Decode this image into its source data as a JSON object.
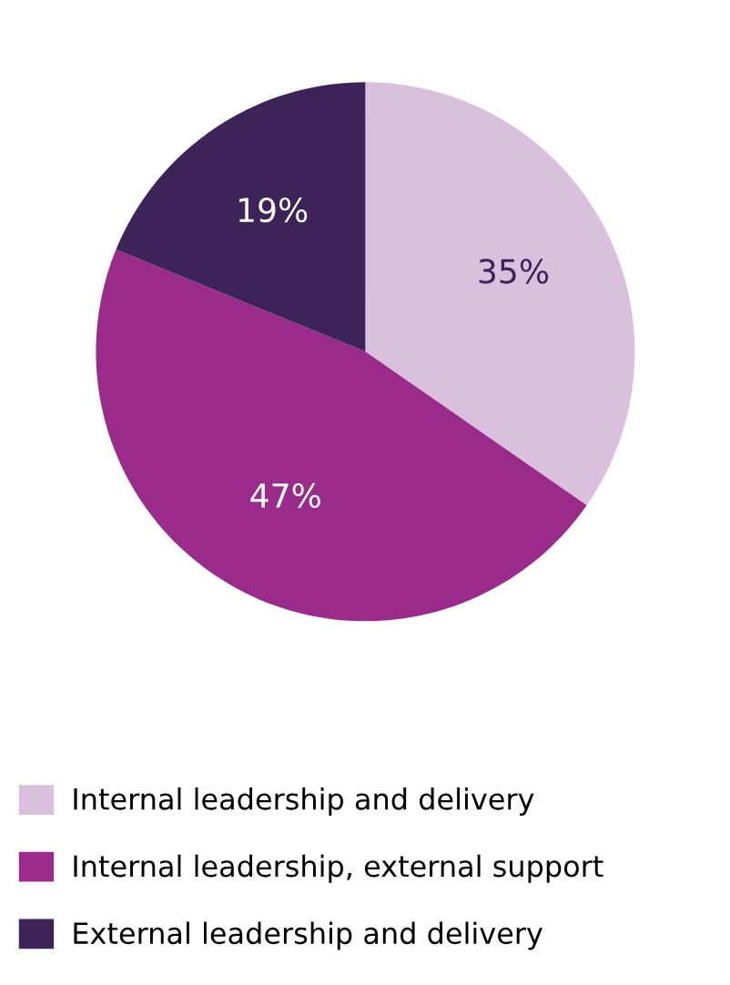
{
  "chart_data": {
    "type": "pie",
    "categories": [
      "Internal leadership and delivery",
      "Internal leadership, external support",
      "External leadership and delivery"
    ],
    "values": [
      35,
      47,
      19
    ],
    "colors": [
      "#d9c0dc",
      "#9b2b8a",
      "#3d2358"
    ],
    "value_labels": [
      "35%",
      "47%",
      "19%"
    ],
    "legend": "bottom"
  }
}
